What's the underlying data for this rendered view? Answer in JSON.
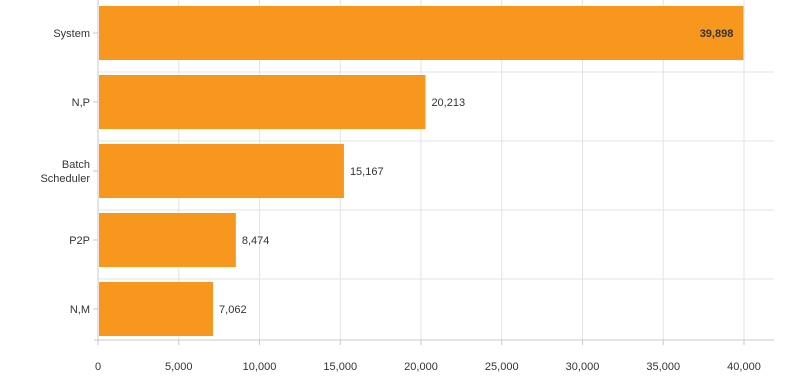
{
  "chart_data": {
    "type": "bar",
    "orientation": "horizontal",
    "categories": [
      "System",
      "N,P",
      "Batch\nScheduler",
      "P2P",
      "N,M"
    ],
    "values": [
      39898,
      20213,
      15167,
      8474,
      7062
    ],
    "value_labels": [
      "39,898",
      "20,213",
      "15,167",
      "8,474",
      "7,062"
    ],
    "xlim": [
      0,
      40000
    ],
    "x_ticks": [
      0,
      5000,
      10000,
      15000,
      20000,
      25000,
      30000,
      35000,
      40000
    ],
    "x_tick_labels": [
      "0",
      "5,000",
      "10,000",
      "15,000",
      "20,000",
      "25,000",
      "30,000",
      "35,000",
      "40,000"
    ],
    "grid": true,
    "title": "",
    "xlabel": "",
    "ylabel": "",
    "bar_color": "#f7971e",
    "grid_color": "#e3e3e3",
    "axis_color": "#c9c9c9",
    "text_color": "#333333"
  }
}
